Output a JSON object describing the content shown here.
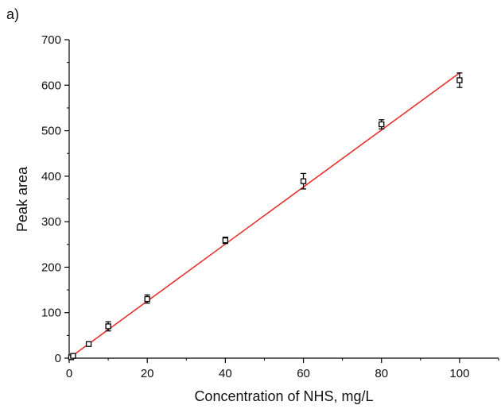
{
  "panel_label": "a)",
  "chart_data": {
    "type": "scatter",
    "xlabel": "Concentration of NHS, mg/L",
    "ylabel": "Peak area",
    "xlim": [
      0,
      110
    ],
    "ylim": [
      0,
      700
    ],
    "x_ticks": [
      0,
      20,
      40,
      60,
      80,
      100
    ],
    "y_ticks": [
      0,
      100,
      200,
      300,
      400,
      500,
      600,
      700
    ],
    "x_minor_step": 10,
    "y_minor_step": 50,
    "grid": false,
    "points": [
      {
        "x": 0.5,
        "y": 2,
        "err": 1
      },
      {
        "x": 1,
        "y": 5,
        "err": 1
      },
      {
        "x": 5,
        "y": 31,
        "err": 4
      },
      {
        "x": 10,
        "y": 70,
        "err": 10
      },
      {
        "x": 20,
        "y": 130,
        "err": 9
      },
      {
        "x": 40,
        "y": 259,
        "err": 7
      },
      {
        "x": 60,
        "y": 389,
        "err": 17
      },
      {
        "x": 80,
        "y": 514,
        "err": 10
      },
      {
        "x": 100,
        "y": 611,
        "err": 16
      }
    ],
    "fit_line": {
      "x": [
        0,
        100
      ],
      "y": [
        0,
        627
      ],
      "color": "#e8312f"
    },
    "marker_color": "#000000"
  }
}
